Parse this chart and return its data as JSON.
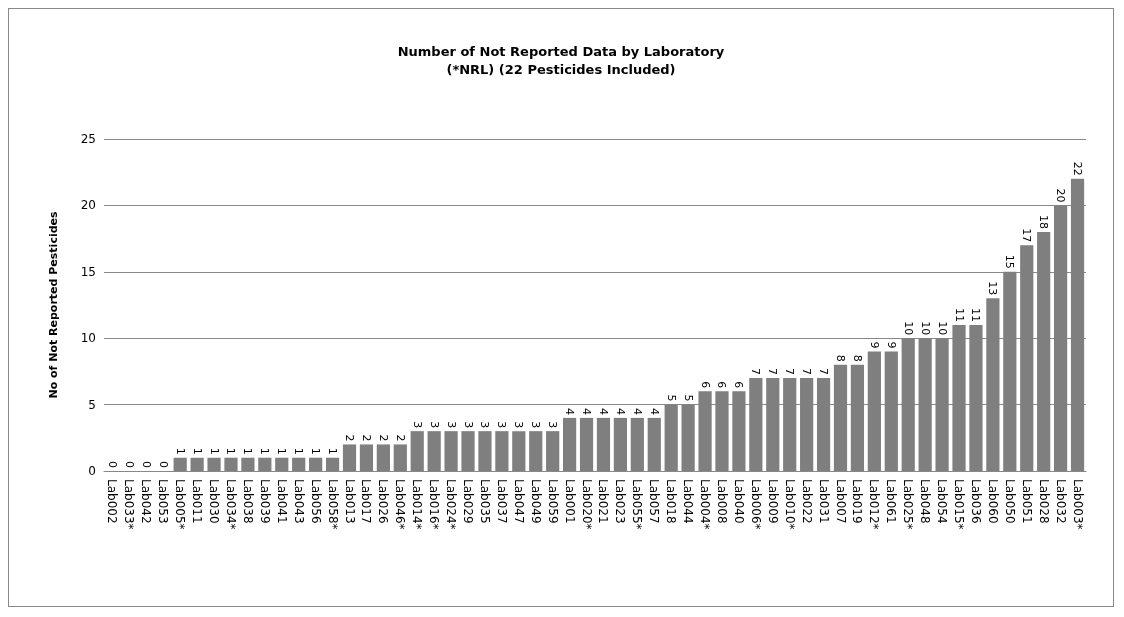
{
  "chart_data": {
    "type": "bar",
    "title": "Number of Not Reported Data by Laboratory\n(*NRL) (22 Pesticides Included)",
    "ylabel": "No of Not Reported Pesticides",
    "categories": [
      "Lab002",
      "Lab033*",
      "Lab042",
      "Lab053",
      "Lab005*",
      "Lab011",
      "Lab030",
      "Lab034*",
      "Lab038",
      "Lab039",
      "Lab041",
      "Lab043",
      "Lab056",
      "Lab058*",
      "Lab013",
      "Lab017",
      "Lab026",
      "Lab046*",
      "Lab014*",
      "Lab016*",
      "Lab024*",
      "Lab029",
      "Lab035",
      "Lab037",
      "Lab047",
      "Lab049",
      "Lab059",
      "Lab001",
      "Lab020*",
      "Lab021",
      "Lab023",
      "Lab055*",
      "Lab057",
      "Lab018",
      "Lab044",
      "Lab004*",
      "Lab008",
      "Lab040",
      "Lab006*",
      "Lab009",
      "Lab010*",
      "Lab022",
      "Lab031",
      "Lab007",
      "Lab019",
      "Lab012*",
      "Lab061",
      "Lab025*",
      "Lab048",
      "Lab054",
      "Lab015*",
      "Lab036",
      "Lab060",
      "Lab050",
      "Lab051",
      "Lab028",
      "Lab032",
      "Lab003*"
    ],
    "values": [
      0,
      0,
      0,
      0,
      1,
      1,
      1,
      1,
      1,
      1,
      1,
      1,
      1,
      1,
      2,
      2,
      2,
      2,
      3,
      3,
      3,
      3,
      3,
      3,
      3,
      3,
      3,
      4,
      4,
      4,
      4,
      4,
      4,
      5,
      5,
      6,
      6,
      6,
      7,
      7,
      7,
      7,
      7,
      8,
      8,
      9,
      9,
      10,
      10,
      10,
      11,
      11,
      13,
      15,
      17,
      18,
      20,
      22
    ],
    "color": "#7f7f7f",
    "ylim": [
      0,
      25
    ],
    "yticks": [
      0,
      5,
      10,
      15,
      20,
      25
    ],
    "grid": "y",
    "data_labels": true
  }
}
